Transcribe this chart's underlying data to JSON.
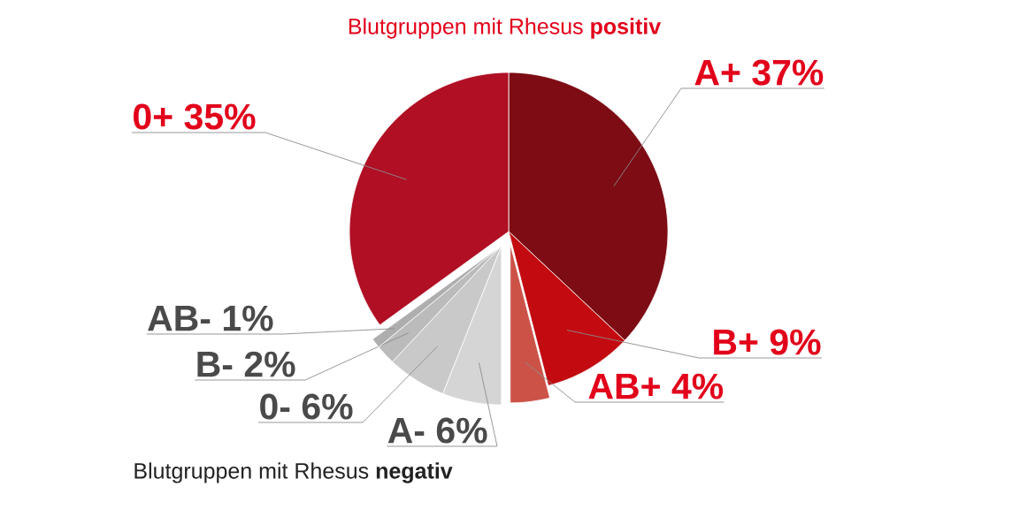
{
  "chart_data": {
    "type": "pie",
    "title": "Blutgruppen mit Rhesus **positiv**",
    "categories": [
      "A+",
      "B+",
      "AB+",
      "A-",
      "0-",
      "B-",
      "AB-",
      "0+"
    ],
    "values": [
      37,
      9,
      4,
      6,
      6,
      2,
      1,
      35
    ],
    "value_labels": [
      "37%",
      "9%",
      "4%",
      "6%",
      "6%",
      "2%",
      "1%",
      "35%"
    ],
    "colors": [
      "#7d0c14",
      "#c20a10",
      "#cc5248",
      "#d5d5d5",
      "#c9c9c9",
      "#bbbbbb",
      "#aeaeae",
      "#b00f24"
    ],
    "annotations": [
      "Blutgruppen mit Rhesus **negativ**"
    ]
  }
}
